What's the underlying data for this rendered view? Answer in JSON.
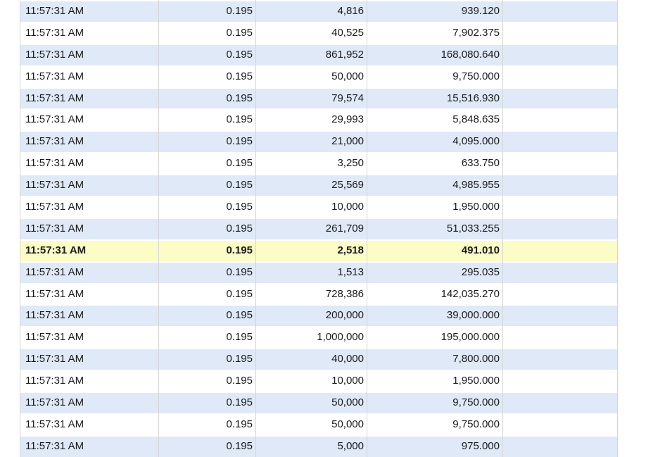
{
  "table": {
    "name": "time-and-sales",
    "columns": [
      {
        "key": "time",
        "align": "left"
      },
      {
        "key": "price",
        "align": "right"
      },
      {
        "key": "quantity",
        "align": "right"
      },
      {
        "key": "value",
        "align": "right"
      },
      {
        "key": "spacer",
        "align": "left"
      }
    ],
    "highlighted_row_index": 11,
    "rows": [
      {
        "time": "11:57:31 AM",
        "price": "0.195",
        "quantity": "4,816",
        "value": "939.120",
        "highlighted": false
      },
      {
        "time": "11:57:31 AM",
        "price": "0.195",
        "quantity": "40,525",
        "value": "7,902.375",
        "highlighted": false
      },
      {
        "time": "11:57:31 AM",
        "price": "0.195",
        "quantity": "861,952",
        "value": "168,080.640",
        "highlighted": false
      },
      {
        "time": "11:57:31 AM",
        "price": "0.195",
        "quantity": "50,000",
        "value": "9,750.000",
        "highlighted": false
      },
      {
        "time": "11:57:31 AM",
        "price": "0.195",
        "quantity": "79,574",
        "value": "15,516.930",
        "highlighted": false
      },
      {
        "time": "11:57:31 AM",
        "price": "0.195",
        "quantity": "29,993",
        "value": "5,848.635",
        "highlighted": false
      },
      {
        "time": "11:57:31 AM",
        "price": "0.195",
        "quantity": "21,000",
        "value": "4,095.000",
        "highlighted": false
      },
      {
        "time": "11:57:31 AM",
        "price": "0.195",
        "quantity": "3,250",
        "value": "633.750",
        "highlighted": false
      },
      {
        "time": "11:57:31 AM",
        "price": "0.195",
        "quantity": "25,569",
        "value": "4,985.955",
        "highlighted": false
      },
      {
        "time": "11:57:31 AM",
        "price": "0.195",
        "quantity": "10,000",
        "value": "1,950.000",
        "highlighted": false
      },
      {
        "time": "11:57:31 AM",
        "price": "0.195",
        "quantity": "261,709",
        "value": "51,033.255",
        "highlighted": false
      },
      {
        "time": "11:57:31 AM",
        "price": "0.195",
        "quantity": "2,518",
        "value": "491.010",
        "highlighted": true
      },
      {
        "time": "11:57:31 AM",
        "price": "0.195",
        "quantity": "1,513",
        "value": "295.035",
        "highlighted": false
      },
      {
        "time": "11:57:31 AM",
        "price": "0.195",
        "quantity": "728,386",
        "value": "142,035.270",
        "highlighted": false
      },
      {
        "time": "11:57:31 AM",
        "price": "0.195",
        "quantity": "200,000",
        "value": "39,000.000",
        "highlighted": false
      },
      {
        "time": "11:57:31 AM",
        "price": "0.195",
        "quantity": "1,000,000",
        "value": "195,000.000",
        "highlighted": false
      },
      {
        "time": "11:57:31 AM",
        "price": "0.195",
        "quantity": "40,000",
        "value": "7,800.000",
        "highlighted": false
      },
      {
        "time": "11:57:31 AM",
        "price": "0.195",
        "quantity": "10,000",
        "value": "1,950.000",
        "highlighted": false
      },
      {
        "time": "11:57:31 AM",
        "price": "0.195",
        "quantity": "50,000",
        "value": "9,750.000",
        "highlighted": false
      },
      {
        "time": "11:57:31 AM",
        "price": "0.195",
        "quantity": "50,000",
        "value": "9,750.000",
        "highlighted": false
      },
      {
        "time": "11:57:31 AM",
        "price": "0.195",
        "quantity": "5,000",
        "value": "975.000",
        "highlighted": false
      }
    ]
  },
  "colors": {
    "row_even": "#dfe9f8",
    "row_odd": "#ffffff",
    "row_highlight": "#fcfcc6",
    "gridline": "#d4d4d4",
    "text": "#1a1a1a",
    "background": "#ffffff"
  }
}
